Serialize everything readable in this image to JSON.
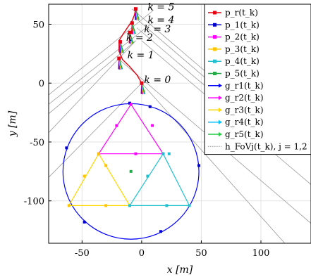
{
  "chart_data": {
    "type": "line",
    "xlabel": "x [m]",
    "ylabel": "y [m]",
    "xlim": [
      -78,
      142
    ],
    "ylim": [
      -136,
      67
    ],
    "xticks": [
      -50,
      0,
      50,
      100
    ],
    "xtick_labels": [
      "-50",
      "0",
      "50",
      "100"
    ],
    "yticks": [
      50,
      0,
      -50,
      -100
    ],
    "ytick_labels": [
      "50",
      "0",
      "-50",
      "-100"
    ],
    "grid": true,
    "legend_position": "top-right",
    "k_labels": [
      {
        "text": "k = 5",
        "x": 5,
        "y": 62
      },
      {
        "text": "k = 4",
        "x": 5,
        "y": 51
      },
      {
        "text": "k = 3",
        "x": 2,
        "y": 43
      },
      {
        "text": "k = 2",
        "x": -13,
        "y": 36
      },
      {
        "text": "k = 1",
        "x": -12,
        "y": 21
      },
      {
        "text": "k = 0",
        "x": 2,
        "y": 0
      }
    ],
    "trajectory": {
      "name": "p_r(t_k)",
      "color": "#e6000f",
      "x": [
        0,
        -4,
        -10,
        -16,
        -19,
        -19,
        -16,
        -12,
        -8,
        -6,
        -5
      ],
      "y": [
        0,
        7,
        14,
        20,
        27,
        36,
        41,
        47,
        53,
        58,
        63
      ]
    },
    "trajectory_markers": {
      "x": [
        0,
        -19,
        -18,
        -10,
        -8,
        -5
      ],
      "y": [
        0,
        21,
        35,
        43,
        51,
        63
      ]
    },
    "circle": {
      "cx": -9,
      "cy": -75,
      "r": 57,
      "color": "#0000ff"
    },
    "p1_points": {
      "x": [
        -10,
        7,
        48,
        16,
        -48,
        -63
      ],
      "y": [
        -17,
        -20,
        -70,
        -126,
        -118,
        -55
      ]
    },
    "triangle_magenta": {
      "x": [
        -9,
        -36,
        18,
        -9
      ],
      "y": [
        -18,
        -60,
        -60,
        -18
      ]
    },
    "p2_points": {
      "x": [
        -9,
        -21,
        9,
        -36,
        -5,
        18
      ],
      "y": [
        -18,
        -36,
        -36,
        -60,
        -60,
        -60
      ]
    },
    "triangle_yellow": {
      "x": [
        -36,
        -61,
        -10,
        -36
      ],
      "y": [
        -60,
        -104,
        -104,
        -60
      ]
    },
    "p3_points": {
      "x": [
        -36,
        -30,
        -48,
        -61,
        -30,
        -10
      ],
      "y": [
        -60,
        -70,
        -79,
        -104,
        -104,
        -104
      ]
    },
    "triangle_cyan": {
      "x": [
        18,
        -10,
        40,
        18
      ],
      "y": [
        -60,
        -104,
        -104,
        -60
      ]
    },
    "p4_points": {
      "x": [
        18,
        23,
        5,
        -10,
        21,
        40
      ],
      "y": [
        -60,
        -60,
        -79,
        -104,
        -104,
        -104
      ]
    },
    "p5_points": {
      "x": [
        -9
      ],
      "y": [
        -75
      ]
    },
    "heading_arrows": {
      "origins": {
        "x": [
          -19,
          -18,
          -10,
          -8,
          -5,
          0
        ],
        "y": [
          21,
          35,
          43,
          51,
          63,
          0
        ]
      },
      "colors": [
        "#ff0000",
        "#0000ff",
        "#ff00ff",
        "#ffd700",
        "#00bfff",
        "#22aa22"
      ]
    },
    "fov_lines": [
      {
        "x": [
          -78,
          10
        ],
        "y": [
          -10,
          62
        ]
      },
      {
        "x": [
          -78,
          10
        ],
        "y": [
          -18,
          52
        ]
      },
      {
        "x": [
          -78,
          -5
        ],
        "y": [
          -26,
          36
        ]
      },
      {
        "x": [
          -78,
          -5
        ],
        "y": [
          -42,
          36
        ]
      },
      {
        "x": [
          -78,
          0
        ],
        "y": [
          -80,
          0
        ]
      },
      {
        "x": [
          -8,
          95
        ],
        "y": [
          63,
          -26
        ]
      },
      {
        "x": [
          -6,
          100
        ],
        "y": [
          56,
          -36
        ]
      },
      {
        "x": [
          -4,
          120
        ],
        "y": [
          47,
          -60
        ]
      },
      {
        "x": [
          0,
          150
        ],
        "y": [
          36,
          -93
        ]
      },
      {
        "x": [
          -20,
          150
        ],
        "y": [
          21,
          -126
        ]
      },
      {
        "x": [
          0,
          120
        ],
        "y": [
          0,
          -136
        ]
      }
    ],
    "legend": [
      {
        "label": "p_r(t_k)",
        "color": "#e6000f",
        "marker": true,
        "arrow": false
      },
      {
        "label": "p_1(t_k)",
        "color": "#0000cc",
        "marker": true,
        "arrow": false
      },
      {
        "label": "p_2(t_k)",
        "color": "#ff00ff",
        "marker": true,
        "arrow": false
      },
      {
        "label": "p_3(t_k)",
        "color": "#ffc400",
        "marker": true,
        "arrow": false
      },
      {
        "label": "p_4(t_k)",
        "color": "#1fc1d1",
        "marker": true,
        "arrow": false
      },
      {
        "label": "p_5(t_k)",
        "color": "#22aa44",
        "marker": true,
        "arrow": false
      },
      {
        "label": "g_r1(t_k)",
        "color": "#0000ff",
        "marker": false,
        "arrow": true
      },
      {
        "label": "g_r2(t_k)",
        "color": "#ff00ff",
        "marker": false,
        "arrow": true
      },
      {
        "label": "g_r3(t_k)",
        "color": "#ffd700",
        "marker": false,
        "arrow": true
      },
      {
        "label": "g_r4(t_k)",
        "color": "#00bfff",
        "marker": false,
        "arrow": true
      },
      {
        "label": "g_r5(t_k)",
        "color": "#22cc44",
        "marker": false,
        "arrow": true
      },
      {
        "label": "h_FoVj(t_k), j = 1,2",
        "color": "#bbbbbb",
        "marker": false,
        "arrow": false,
        "dotted": true
      }
    ]
  }
}
